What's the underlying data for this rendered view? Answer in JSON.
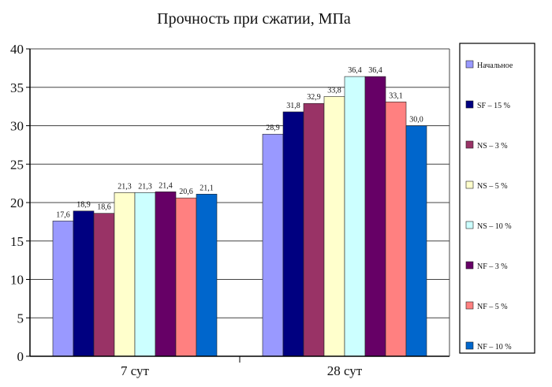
{
  "chart_data": {
    "type": "bar",
    "title": "Прочность при сжатии, МПа",
    "categories": [
      "7 сут",
      "28 сут"
    ],
    "ylim": [
      0,
      40
    ],
    "yticks": [
      0,
      5,
      10,
      15,
      20,
      25,
      30,
      35,
      40
    ],
    "grid": true,
    "legend_position": "right",
    "series": [
      {
        "name": "Начальное",
        "values": [
          17.6,
          28.9
        ],
        "labels": [
          "17,6",
          "28,9"
        ],
        "color": "#9999ff"
      },
      {
        "name": "SF – 15 %",
        "values": [
          18.9,
          31.8
        ],
        "labels": [
          "18,9",
          "31,8"
        ],
        "color": "#000080"
      },
      {
        "name": "NS – 3 %",
        "values": [
          18.6,
          32.9
        ],
        "labels": [
          "18,6",
          "32,9"
        ],
        "color": "#993366"
      },
      {
        "name": "NS – 5 %",
        "values": [
          21.3,
          33.8
        ],
        "labels": [
          "21,3",
          "33,8"
        ],
        "color": "#ffffcc"
      },
      {
        "name": "NS – 10 %",
        "values": [
          21.3,
          36.4
        ],
        "labels": [
          "21,3",
          "36,4"
        ],
        "color": "#ccffff"
      },
      {
        "name": "NF – 3 %",
        "values": [
          21.4,
          36.4
        ],
        "labels": [
          "21,4",
          "36,4"
        ],
        "color": "#660066"
      },
      {
        "name": "NF – 5 %",
        "values": [
          20.6,
          33.1
        ],
        "labels": [
          "20,6",
          "33,1"
        ],
        "color": "#ff8080"
      },
      {
        "name": "NF – 10 %",
        "values": [
          21.1,
          30.0
        ],
        "labels": [
          "21,1",
          "30,0"
        ],
        "color": "#0066cc"
      }
    ]
  }
}
